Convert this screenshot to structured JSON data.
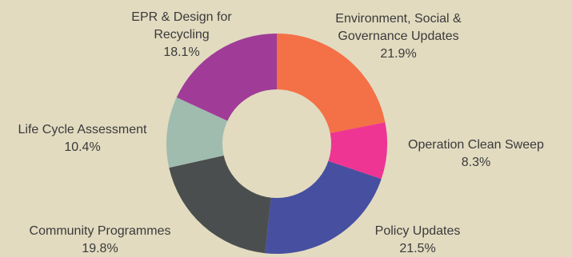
{
  "background": "#e2dbc0",
  "chart_data": {
    "type": "pie",
    "variant": "donut",
    "title": "",
    "slices": [
      {
        "label_lines": [
          "Environment, Social &",
          "Governance Updates"
        ],
        "value": 21.9,
        "value_label": "21.9%",
        "color": "#f47046"
      },
      {
        "label_lines": [
          "Operation Clean Sweep"
        ],
        "value": 8.3,
        "value_label": "8.3%",
        "color": "#ee3593"
      },
      {
        "label_lines": [
          "Policy Updates"
        ],
        "value": 21.5,
        "value_label": "21.5%",
        "color": "#474fa0"
      },
      {
        "label_lines": [
          "Community Programmes"
        ],
        "value": 19.8,
        "value_label": "19.8%",
        "color": "#4b4e4e"
      },
      {
        "label_lines": [
          "Life Cycle Assessment"
        ],
        "value": 10.4,
        "value_label": "10.4%",
        "color": "#9fbcaf"
      },
      {
        "label_lines": [
          "EPR & Design for",
          "Recycling"
        ],
        "value": 18.1,
        "value_label": "18.1%",
        "color": "#a03c97"
      }
    ]
  }
}
